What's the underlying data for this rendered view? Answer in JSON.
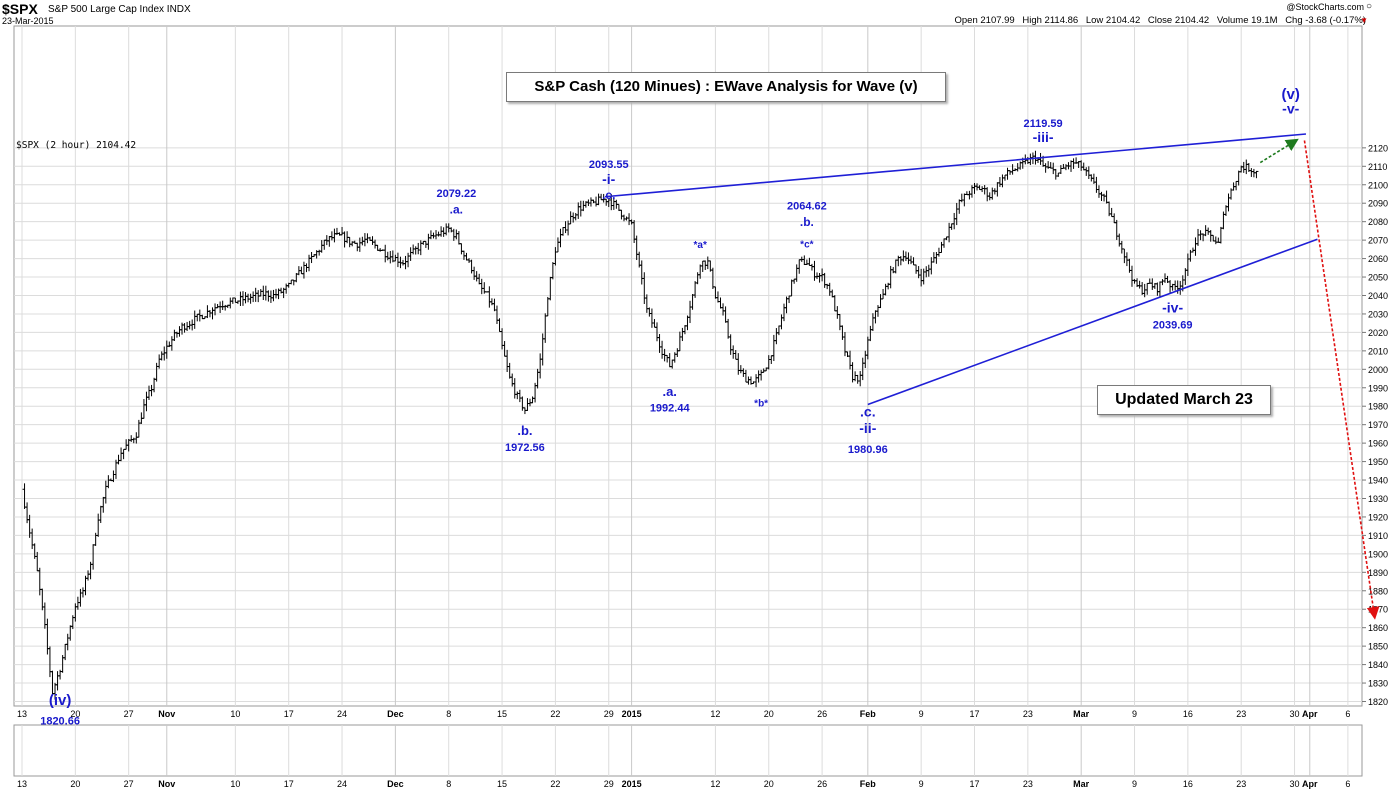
{
  "header": {
    "symbol": "$SPX",
    "name": "S&P 500 Large Cap Index",
    "exchange": "INDX",
    "date": "23-Mar-2015",
    "credit": "@StockCharts.com",
    "open_label": "Open",
    "open": "2107.99",
    "high_label": "High",
    "high": "2114.86",
    "low_label": "Low",
    "low": "2104.42",
    "close_label": "Close",
    "close": "2104.42",
    "volume_label": "Volume",
    "volume": "19.1M",
    "chg_label": "Chg",
    "chg": "-3.68 (-0.17%)"
  },
  "colors": {
    "wave_labels": "#1a1acc",
    "trendlines": "#1f1fd6",
    "projection_up": "#1e7a1e",
    "projection_down": "#e01010",
    "bars": "#000000",
    "grid": "#dcdcdc"
  },
  "chart_data": {
    "type": "ohlc",
    "title": "S&P Cash (120 Minues) : EWave Analysis for Wave (v)",
    "note": "Updated March 23",
    "series_label": "$SPX (2 hour) 2104.42",
    "ylim": [
      1815,
      2128
    ],
    "yticks": [
      1820,
      1830,
      1840,
      1850,
      1860,
      1870,
      1880,
      1890,
      1900,
      1910,
      1920,
      1930,
      1940,
      1950,
      1960,
      1970,
      1980,
      1990,
      2000,
      2010,
      2020,
      2030,
      2040,
      2050,
      2060,
      2070,
      2080,
      2090,
      2100,
      2110,
      2120
    ],
    "xticks": [
      {
        "d": 0,
        "label": "13"
      },
      {
        "d": 7,
        "label": "20"
      },
      {
        "d": 14,
        "label": "27"
      },
      {
        "d": 19,
        "label": "Nov"
      },
      {
        "d": 28,
        "label": "10"
      },
      {
        "d": 35,
        "label": "17"
      },
      {
        "d": 42,
        "label": "24"
      },
      {
        "d": 49,
        "label": "Dec"
      },
      {
        "d": 56,
        "label": "8"
      },
      {
        "d": 63,
        "label": "15"
      },
      {
        "d": 70,
        "label": "22"
      },
      {
        "d": 77,
        "label": "29"
      },
      {
        "d": 80,
        "label": "2015"
      },
      {
        "d": 91,
        "label": "12"
      },
      {
        "d": 98,
        "label": "20"
      },
      {
        "d": 105,
        "label": "26"
      },
      {
        "d": 111,
        "label": "Feb"
      },
      {
        "d": 118,
        "label": "9"
      },
      {
        "d": 125,
        "label": "17"
      },
      {
        "d": 132,
        "label": "23"
      },
      {
        "d": 139,
        "label": "Mar"
      },
      {
        "d": 146,
        "label": "9"
      },
      {
        "d": 153,
        "label": "16"
      },
      {
        "d": 160,
        "label": "23"
      },
      {
        "d": 167,
        "label": "30"
      },
      {
        "d": 169,
        "label": "Apr"
      },
      {
        "d": 174,
        "label": "6"
      }
    ],
    "price_path": [
      [
        0,
        1935
      ],
      [
        1,
        1912
      ],
      [
        2,
        1890
      ],
      [
        3,
        1860
      ],
      [
        4,
        1825
      ],
      [
        5,
        1838
      ],
      [
        6,
        1855
      ],
      [
        7,
        1872
      ],
      [
        8,
        1880
      ],
      [
        9,
        1895
      ],
      [
        10,
        1920
      ],
      [
        11,
        1935
      ],
      [
        12,
        1945
      ],
      [
        13,
        1955
      ],
      [
        14,
        1960
      ],
      [
        15,
        1965
      ],
      [
        16,
        1980
      ],
      [
        17,
        1990
      ],
      [
        18,
        2005
      ],
      [
        19,
        2012
      ],
      [
        20,
        2018
      ],
      [
        21,
        2023
      ],
      [
        22,
        2025
      ],
      [
        23,
        2028
      ],
      [
        24,
        2030
      ],
      [
        25,
        2033
      ],
      [
        26,
        2035
      ],
      [
        27,
        2036
      ],
      [
        28,
        2037
      ],
      [
        29,
        2038
      ],
      [
        30,
        2039
      ],
      [
        31,
        2040
      ],
      [
        32,
        2041
      ],
      [
        33,
        2040
      ],
      [
        34,
        2042
      ],
      [
        35,
        2045
      ],
      [
        36,
        2050
      ],
      [
        37,
        2055
      ],
      [
        38,
        2060
      ],
      [
        39,
        2065
      ],
      [
        40,
        2070
      ],
      [
        41,
        2072
      ],
      [
        42,
        2072
      ],
      [
        43,
        2069
      ],
      [
        44,
        2068
      ],
      [
        45,
        2070
      ],
      [
        46,
        2068
      ],
      [
        47,
        2065
      ],
      [
        48,
        2062
      ],
      [
        49,
        2060
      ],
      [
        50,
        2058
      ],
      [
        51,
        2062
      ],
      [
        52,
        2066
      ],
      [
        53,
        2069
      ],
      [
        54,
        2072
      ],
      [
        55,
        2074
      ],
      [
        56,
        2076
      ],
      [
        57,
        2072
      ],
      [
        58,
        2062
      ],
      [
        59,
        2055
      ],
      [
        60,
        2045
      ],
      [
        61,
        2040
      ],
      [
        62,
        2032
      ],
      [
        63,
        2012
      ],
      [
        64,
        1995
      ],
      [
        65,
        1985
      ],
      [
        66,
        1978
      ],
      [
        67,
        1985
      ],
      [
        68,
        2005
      ],
      [
        69,
        2040
      ],
      [
        70,
        2065
      ],
      [
        71,
        2075
      ],
      [
        72,
        2082
      ],
      [
        73,
        2087
      ],
      [
        74,
        2089
      ],
      [
        75,
        2090
      ],
      [
        76,
        2092
      ],
      [
        77,
        2092
      ],
      [
        78,
        2088
      ],
      [
        79,
        2083
      ],
      [
        80,
        2078
      ],
      [
        81,
        2055
      ],
      [
        82,
        2032
      ],
      [
        83,
        2022
      ],
      [
        84,
        2010
      ],
      [
        85,
        2002
      ],
      [
        86,
        2012
      ],
      [
        87,
        2025
      ],
      [
        88,
        2040
      ],
      [
        89,
        2058
      ],
      [
        90,
        2058
      ],
      [
        91,
        2040
      ],
      [
        92,
        2030
      ],
      [
        93,
        2012
      ],
      [
        94,
        2000
      ],
      [
        95,
        1995
      ],
      [
        96,
        1993
      ],
      [
        97,
        1997
      ],
      [
        98,
        2005
      ],
      [
        99,
        2018
      ],
      [
        100,
        2033
      ],
      [
        101,
        2046
      ],
      [
        102,
        2058
      ],
      [
        103,
        2058
      ],
      [
        104,
        2052
      ],
      [
        105,
        2050
      ],
      [
        106,
        2043
      ],
      [
        107,
        2028
      ],
      [
        108,
        2010
      ],
      [
        109,
        1996
      ],
      [
        110,
        1995
      ],
      [
        111,
        2015
      ],
      [
        112,
        2032
      ],
      [
        113,
        2040
      ],
      [
        114,
        2052
      ],
      [
        115,
        2060
      ],
      [
        116,
        2062
      ],
      [
        117,
        2055
      ],
      [
        118,
        2050
      ],
      [
        119,
        2055
      ],
      [
        120,
        2062
      ],
      [
        121,
        2070
      ],
      [
        122,
        2080
      ],
      [
        123,
        2090
      ],
      [
        124,
        2095
      ],
      [
        125,
        2098
      ],
      [
        126,
        2098
      ],
      [
        127,
        2094
      ],
      [
        128,
        2100
      ],
      [
        129,
        2105
      ],
      [
        130,
        2108
      ],
      [
        131,
        2110
      ],
      [
        132,
        2113
      ],
      [
        133,
        2115
      ],
      [
        134,
        2110
      ],
      [
        135,
        2108
      ],
      [
        136,
        2106
      ],
      [
        137,
        2110
      ],
      [
        138,
        2112
      ],
      [
        139,
        2110
      ],
      [
        140,
        2104
      ],
      [
        141,
        2098
      ],
      [
        142,
        2092
      ],
      [
        143,
        2082
      ],
      [
        144,
        2070
      ],
      [
        145,
        2058
      ],
      [
        146,
        2046
      ],
      [
        147,
        2043
      ],
      [
        148,
        2046
      ],
      [
        149,
        2044
      ],
      [
        150,
        2050
      ],
      [
        151,
        2044
      ],
      [
        152,
        2046
      ],
      [
        153,
        2058
      ],
      [
        154,
        2070
      ],
      [
        155,
        2074
      ],
      [
        156,
        2072
      ],
      [
        157,
        2068
      ],
      [
        158,
        2090
      ],
      [
        159,
        2100
      ],
      [
        160,
        2110
      ],
      [
        161,
        2109
      ],
      [
        162,
        2107
      ]
    ],
    "trendlines": [
      {
        "from": [
          76.5,
          2093.5
        ],
        "to": [
          168.5,
          2127.5
        ],
        "color": "blue"
      },
      {
        "from": [
          111,
          1980.9
        ],
        "to": [
          170,
          2070.5
        ],
        "color": "blue"
      }
    ],
    "projections": [
      {
        "from": [
          162.5,
          2112
        ],
        "to": [
          167.2,
          2124
        ],
        "color": "green"
      },
      {
        "from": [
          168.3,
          2124
        ],
        "to": [
          177.5,
          1866
        ],
        "color": "red"
      }
    ],
    "annotations": [
      {
        "d": 57,
        "lines": [
          {
            "t": "2079.22",
            "v": 2093.5,
            "size": 11
          },
          {
            "t": ".a.",
            "v": 2084.5,
            "size": 12
          }
        ]
      },
      {
        "d": 77,
        "lines": [
          {
            "t": "2093.55",
            "v": 2109.2,
            "size": 11
          },
          {
            "t": "-i-",
            "v": 2100.5,
            "size": 14
          },
          {
            "t": ".c.",
            "v": 2092.2,
            "size": 12
          }
        ]
      },
      {
        "d": 66,
        "lines": [
          {
            "t": ".b.",
            "v": 1964.5,
            "size": 13
          },
          {
            "t": "1972.56",
            "v": 1955.8,
            "size": 11
          }
        ]
      },
      {
        "d": 85,
        "lines": [
          {
            "t": ".a.",
            "v": 1985.5,
            "size": 13
          },
          {
            "t": "1992.44",
            "v": 1977.2,
            "size": 11
          }
        ]
      },
      {
        "d": 89,
        "lines": [
          {
            "t": "*a*",
            "v": 2065.8,
            "size": 10
          }
        ]
      },
      {
        "d": 97,
        "lines": [
          {
            "t": "*b*",
            "v": 1979.9,
            "size": 10
          }
        ]
      },
      {
        "d": 103,
        "lines": [
          {
            "t": "2064.62",
            "v": 2086.7,
            "size": 11
          },
          {
            "t": ".b.",
            "v": 2077.7,
            "size": 12
          },
          {
            "t": "*c*",
            "v": 2066.1,
            "size": 10
          }
        ]
      },
      {
        "d": 111,
        "lines": [
          {
            "t": ".c.",
            "v": 1974.5,
            "size": 14
          },
          {
            "t": "-ii-",
            "v": 1965.5,
            "size": 14
          },
          {
            "t": "1980.96",
            "v": 1954.7,
            "size": 11
          }
        ]
      },
      {
        "d": 134,
        "lines": [
          {
            "t": "2119.59",
            "v": 2131.2,
            "size": 11
          },
          {
            "t": "-iii-",
            "v": 2123.1,
            "size": 14
          }
        ]
      },
      {
        "d": 151,
        "lines": [
          {
            "t": "-iv-",
            "v": 2030.9,
            "size": 14
          },
          {
            "t": "2039.69",
            "v": 2022.2,
            "size": 11
          }
        ]
      },
      {
        "d": 166.5,
        "lines": [
          {
            "t": "(v)",
            "v": 2146.5,
            "size": 15
          },
          {
            "t": "-v-",
            "v": 2138.6,
            "size": 14
          }
        ]
      },
      {
        "d": 5,
        "lines": [
          {
            "t": "(iv)",
            "v": 1818.0,
            "size": 15
          },
          {
            "t": "1820.66",
            "v": 1807.5,
            "size": 11
          }
        ]
      }
    ]
  }
}
